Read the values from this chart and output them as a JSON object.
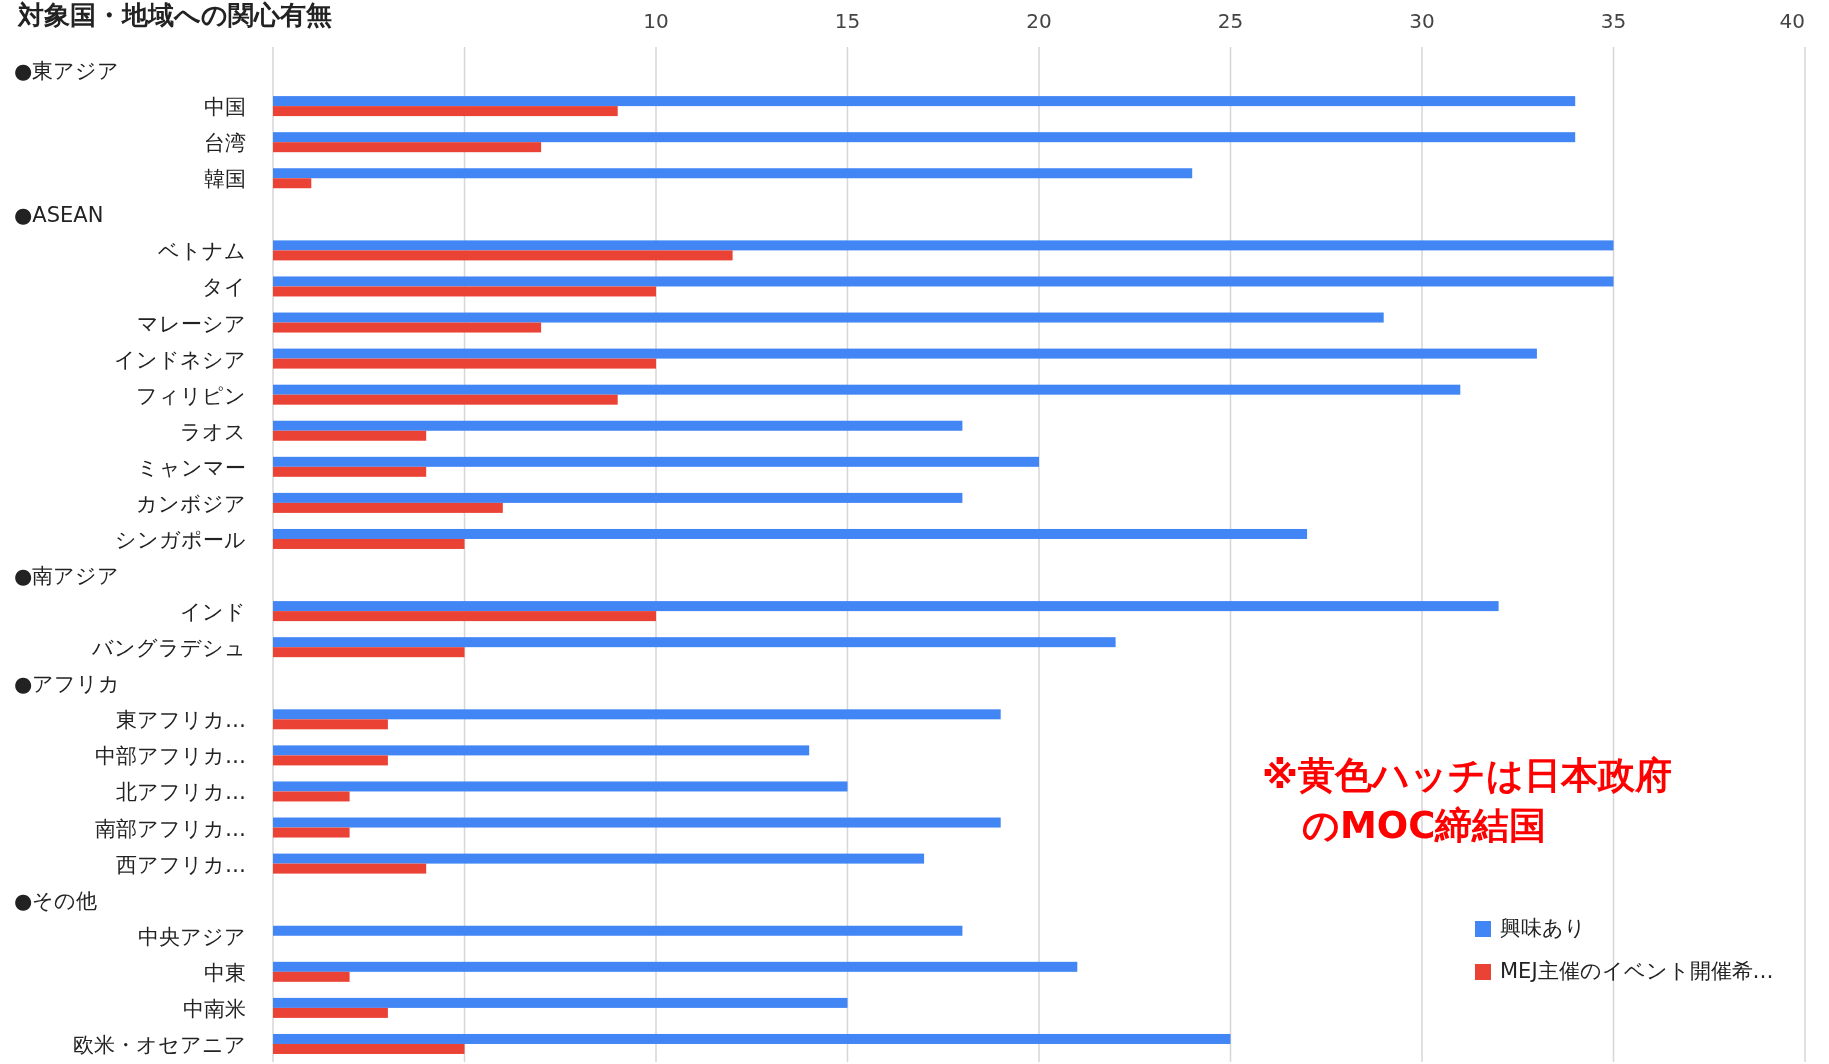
{
  "chart_data": {
    "type": "bar",
    "orientation": "horizontal",
    "title": "対象国・地域への関心有無",
    "categories": [
      null,
      "中国",
      "台湾",
      "韓国",
      null,
      "ベトナム",
      "タイ",
      "マレーシア",
      "インドネシア",
      "フィリピン",
      "ラオス",
      "ミャンマー",
      "カンボジア",
      "シンガポール",
      null,
      "インド",
      "バングラデシュ",
      null,
      "東アフリカ…",
      "中部アフリカ…",
      "北アフリカ…",
      "南部アフリカ…",
      "西アフリカ…",
      null,
      "中央アジア",
      "中東",
      "中南米",
      "欧米・オセアニア"
    ],
    "series": [
      {
        "name": "興味あり",
        "color": "#4285f4",
        "values": [
          null,
          34,
          34,
          24,
          null,
          35,
          35,
          29,
          33,
          31,
          18,
          20,
          18,
          27,
          null,
          32,
          22,
          null,
          19,
          14,
          15,
          19,
          17,
          null,
          18,
          21,
          15,
          25
        ]
      },
      {
        "name": "MEJ主催のイベント開催希…",
        "color": "#ea4335",
        "values": [
          null,
          9,
          7,
          1,
          null,
          12,
          10,
          7,
          10,
          9,
          4,
          4,
          6,
          5,
          null,
          10,
          5,
          null,
          3,
          3,
          2,
          2,
          4,
          null,
          0,
          2,
          3,
          5
        ]
      }
    ],
    "xlim": [
      0,
      40
    ],
    "xticks": [
      {
        "value": 0,
        "label": null
      },
      {
        "value": 5,
        "label": null
      },
      10,
      15,
      20,
      25,
      30,
      35,
      40
    ],
    "grid": "x",
    "legend": "bottom right",
    "annotations": [
      "●東アジア",
      "●ASEAN",
      "●南アジア",
      "●アフリカ",
      "●その他",
      "※黄色ハッチは日本政府",
      "のMOC締結国"
    ]
  }
}
